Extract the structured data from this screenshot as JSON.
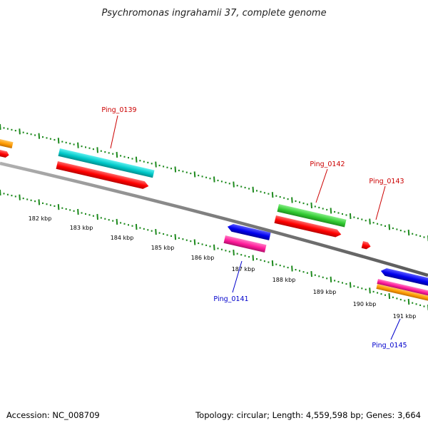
{
  "title": "Psychromonas ingrahamii 37, complete genome",
  "footer": {
    "accession": "Accession: NC_008709",
    "summary": "Topology: circular; Length: 4,559,598 bp; Genes: 3,664"
  },
  "colors": {
    "backbone": "#808080",
    "tick": "#1e8a1e",
    "forward_label": "#cc0000",
    "reverse_label": "#0000cc",
    "orange": "#ff9a00",
    "red": "#ff0000",
    "cyan": "#00c8c8",
    "green": "#33cc33",
    "blue": "#0000ee",
    "magenta": "#ff1a9a"
  },
  "ruler_labels": [
    "182 kbp",
    "183 kbp",
    "184 kbp",
    "185 kbp",
    "186 kbp",
    "187 kbp",
    "188 kbp",
    "189 kbp",
    "190 kbp",
    "191 kbp"
  ],
  "gene_labels": [
    {
      "text": "Ping_0139",
      "strand": "forward"
    },
    {
      "text": "Ping_0141",
      "strand": "reverse"
    },
    {
      "text": "Ping_0142",
      "strand": "forward"
    },
    {
      "text": "Ping_0143",
      "strand": "forward"
    },
    {
      "text": "Ping_0145",
      "strand": "reverse"
    }
  ]
}
